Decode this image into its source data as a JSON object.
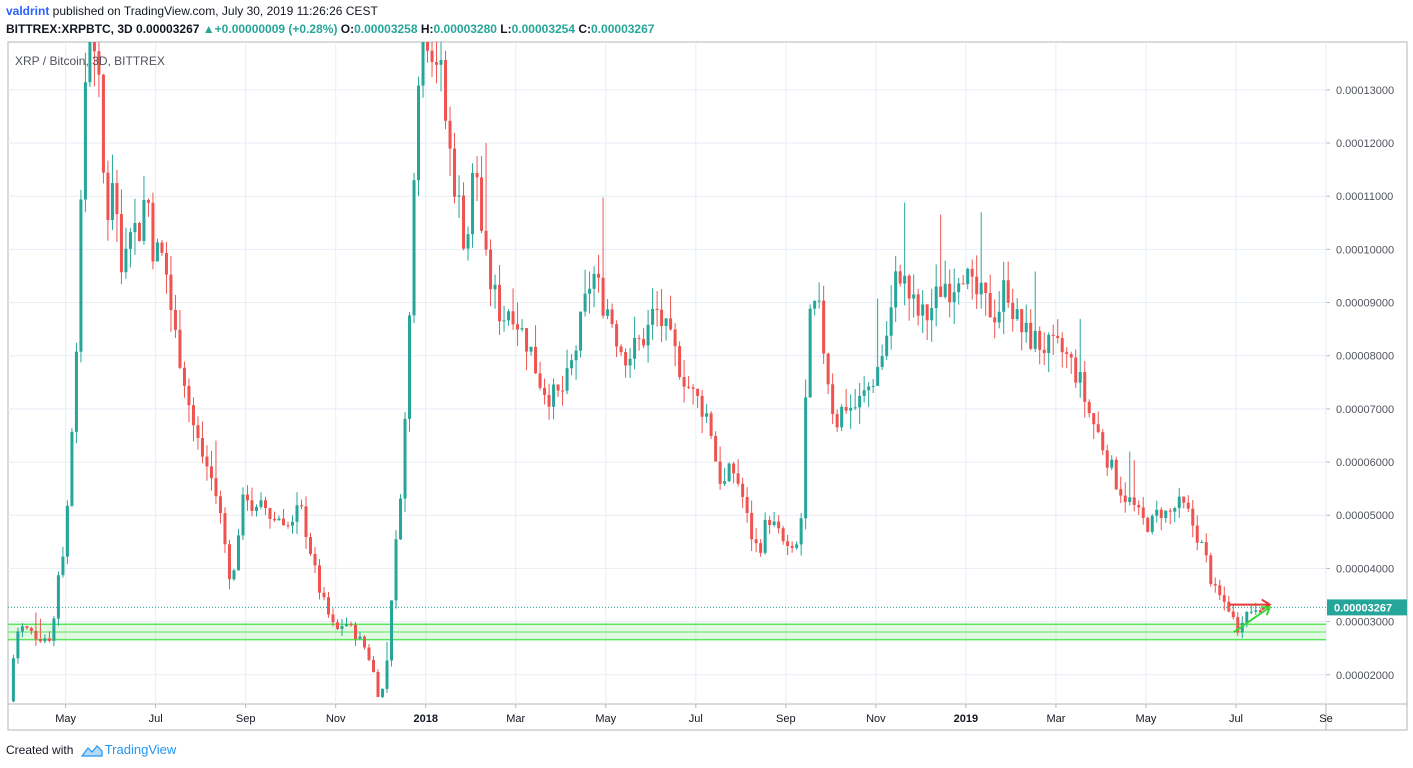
{
  "header": {
    "user": "valdrint",
    "published_text": " published on TradingView.com, July 30, 2019 11:26:26 CEST",
    "symbol": "BITTREX:XRPBTC, 3D",
    "last": "0.00003267",
    "arrow": "▲",
    "change": "+0.00000009 (+0.28%)",
    "o_label": "O:",
    "o_value": "0.00003258",
    "h_label": "H:",
    "h_value": "0.00003280",
    "l_label": "L:",
    "l_value": "0.00003254",
    "c_label": "C:",
    "c_value": "0.00003267"
  },
  "footer": {
    "created_with": "Created with",
    "brand": "TradingView"
  },
  "colors": {
    "bull": "#26a69a",
    "bear": "#ef5350",
    "grid": "#e6eef6",
    "support": "#5ee35e",
    "price_line": "#26a69a",
    "arrow": "#e53935",
    "arrow_green": "#36d636"
  },
  "chart_data": {
    "type": "candlestick",
    "title": "XRP / Bitcoin, 3D, BITTREX",
    "x_axis": {
      "labels": [
        {
          "t": 0.6,
          "label": "May"
        },
        {
          "t": 2.6,
          "label": "Jul"
        },
        {
          "t": 4.6,
          "label": "Sep"
        },
        {
          "t": 6.6,
          "label": "Nov"
        },
        {
          "t": 8.6,
          "label": "2018",
          "bold": true
        },
        {
          "t": 10.6,
          "label": "Mar"
        },
        {
          "t": 12.6,
          "label": "May"
        },
        {
          "t": 14.6,
          "label": "Jul"
        },
        {
          "t": 16.6,
          "label": "Sep"
        },
        {
          "t": 18.6,
          "label": "Nov"
        },
        {
          "t": 20.6,
          "label": "2019",
          "bold": true
        },
        {
          "t": 22.6,
          "label": "Mar"
        },
        {
          "t": 24.6,
          "label": "May"
        },
        {
          "t": 26.6,
          "label": "Jul"
        },
        {
          "t": 28.6,
          "label": "Se"
        }
      ],
      "range_months_since_apr2017": [
        -0.68,
        28.6
      ]
    },
    "y_axis": {
      "ticks": [
        "0.00002000",
        "0.00003000",
        "0.00004000",
        "0.00005000",
        "0.00006000",
        "0.00007000",
        "0.00008000",
        "0.00009000",
        "0.00010000",
        "0.00011000",
        "0.00012000",
        "0.00013000"
      ],
      "range": [
        1.45e-05,
        0.000139
      ]
    },
    "current_price": {
      "value": 3.267e-05,
      "label": "0.00003267"
    },
    "support_zone": [
      2.66e-05,
      2.95e-05
    ],
    "series": [
      {
        "t": -0.66,
        "c": 1.5e-05
      },
      {
        "t": -0.5,
        "c": 2.8e-05
      },
      {
        "t": -0.35,
        "c": 2.9e-05
      },
      {
        "t": 0.0,
        "c": 2.7e-05
      },
      {
        "t": 0.3,
        "c": 2.7e-05
      },
      {
        "t": 0.45,
        "c": 4e-05
      },
      {
        "t": 0.6,
        "c": 4.5e-05
      },
      {
        "t": 0.85,
        "c": 8.5e-05
      },
      {
        "t": 1.0,
        "c": 0.00012
      },
      {
        "t": 1.1,
        "c": 0.00015
      },
      {
        "t": 1.3,
        "c": 0.000135
      },
      {
        "t": 1.5,
        "c": 0.000105
      },
      {
        "t": 1.65,
        "c": 0.000115
      },
      {
        "t": 1.85,
        "c": 9.5e-05
      },
      {
        "t": 2.0,
        "c": 0.000108
      },
      {
        "t": 2.2,
        "c": 0.000102
      },
      {
        "t": 2.4,
        "c": 0.000112
      },
      {
        "t": 2.55,
        "c": 0.0001
      },
      {
        "t": 2.8,
        "c": 9.8e-05
      },
      {
        "t": 3.0,
        "c": 8.5e-05
      },
      {
        "t": 3.2,
        "c": 7.8e-05
      },
      {
        "t": 3.4,
        "c": 6.8e-05
      },
      {
        "t": 3.6,
        "c": 6.2e-05
      },
      {
        "t": 3.8,
        "c": 5.8e-05
      },
      {
        "t": 4.0,
        "c": 5.2e-05
      },
      {
        "t": 4.15,
        "c": 4.4e-05
      },
      {
        "t": 4.3,
        "c": 3.6e-05
      },
      {
        "t": 4.45,
        "c": 4.8e-05
      },
      {
        "t": 4.6,
        "c": 5.5e-05
      },
      {
        "t": 4.8,
        "c": 5e-05
      },
      {
        "t": 5.0,
        "c": 5.2e-05
      },
      {
        "t": 5.2,
        "c": 4.9e-05
      },
      {
        "t": 5.4,
        "c": 5e-05
      },
      {
        "t": 5.6,
        "c": 4.7e-05
      },
      {
        "t": 5.8,
        "c": 5.2e-05
      },
      {
        "t": 6.0,
        "c": 4.5e-05
      },
      {
        "t": 6.2,
        "c": 3.7e-05
      },
      {
        "t": 6.4,
        "c": 3.2e-05
      },
      {
        "t": 6.6,
        "c": 2.8e-05
      },
      {
        "t": 6.8,
        "c": 3e-05
      },
      {
        "t": 7.0,
        "c": 2.8e-05
      },
      {
        "t": 7.2,
        "c": 2.6e-05
      },
      {
        "t": 7.4,
        "c": 2.2e-05
      },
      {
        "t": 7.55,
        "c": 1.6e-05
      },
      {
        "t": 7.7,
        "c": 1.8e-05
      },
      {
        "t": 7.85,
        "c": 3.6e-05
      },
      {
        "t": 8.0,
        "c": 5e-05
      },
      {
        "t": 8.2,
        "c": 7.5e-05
      },
      {
        "t": 8.35,
        "c": 0.00012
      },
      {
        "t": 8.5,
        "c": 0.000145
      },
      {
        "t": 8.7,
        "c": 0.00014
      },
      {
        "t": 8.9,
        "c": 0.000135
      },
      {
        "t": 9.1,
        "c": 0.00012
      },
      {
        "t": 9.3,
        "c": 0.00011
      },
      {
        "t": 9.5,
        "c": 0.0001
      },
      {
        "t": 9.7,
        "c": 0.000118
      },
      {
        "t": 9.9,
        "c": 9.8e-05
      },
      {
        "t": 10.1,
        "c": 9.2e-05
      },
      {
        "t": 10.3,
        "c": 8.7e-05
      },
      {
        "t": 10.5,
        "c": 9e-05
      },
      {
        "t": 10.7,
        "c": 8.5e-05
      },
      {
        "t": 10.9,
        "c": 8.2e-05
      },
      {
        "t": 11.1,
        "c": 7.6e-05
      },
      {
        "t": 11.3,
        "c": 7.3e-05
      },
      {
        "t": 11.5,
        "c": 7.2e-05
      },
      {
        "t": 11.7,
        "c": 7.4e-05
      },
      {
        "t": 11.9,
        "c": 8e-05
      },
      {
        "t": 12.1,
        "c": 8.8e-05
      },
      {
        "t": 12.3,
        "c": 9.6e-05
      },
      {
        "t": 12.5,
        "c": 9.1e-05
      },
      {
        "t": 12.7,
        "c": 8.8e-05
      },
      {
        "t": 12.9,
        "c": 8.2e-05
      },
      {
        "t": 13.1,
        "c": 8e-05
      },
      {
        "t": 13.3,
        "c": 8.2e-05
      },
      {
        "t": 13.5,
        "c": 8.4e-05
      },
      {
        "t": 13.7,
        "c": 8.9e-05
      },
      {
        "t": 13.9,
        "c": 8.5e-05
      },
      {
        "t": 14.1,
        "c": 8.1e-05
      },
      {
        "t": 14.3,
        "c": 7.7e-05
      },
      {
        "t": 14.5,
        "c": 7.3e-05
      },
      {
        "t": 14.7,
        "c": 7.1e-05
      },
      {
        "t": 14.9,
        "c": 6.8e-05
      },
      {
        "t": 15.05,
        "c": 6e-05
      },
      {
        "t": 15.2,
        "c": 5.5e-05
      },
      {
        "t": 15.4,
        "c": 5.9e-05
      },
      {
        "t": 15.6,
        "c": 5.5e-05
      },
      {
        "t": 15.8,
        "c": 4.7e-05
      },
      {
        "t": 16.0,
        "c": 4.3e-05
      },
      {
        "t": 16.2,
        "c": 5e-05
      },
      {
        "t": 16.4,
        "c": 4.7e-05
      },
      {
        "t": 16.6,
        "c": 4.4e-05
      },
      {
        "t": 16.8,
        "c": 4.2e-05
      },
      {
        "t": 16.95,
        "c": 5e-05
      },
      {
        "t": 17.1,
        "c": 8.5e-05
      },
      {
        "t": 17.3,
        "c": 9e-05
      },
      {
        "t": 17.5,
        "c": 7.8e-05
      },
      {
        "t": 17.7,
        "c": 6.7e-05
      },
      {
        "t": 17.9,
        "c": 7.1e-05
      },
      {
        "t": 18.1,
        "c": 7e-05
      },
      {
        "t": 18.3,
        "c": 7.2e-05
      },
      {
        "t": 18.5,
        "c": 7.5e-05
      },
      {
        "t": 18.7,
        "c": 7.9e-05
      },
      {
        "t": 18.9,
        "c": 8.6e-05
      },
      {
        "t": 19.1,
        "c": 9.7e-05
      },
      {
        "t": 19.3,
        "c": 9.2e-05
      },
      {
        "t": 19.5,
        "c": 8.8e-05
      },
      {
        "t": 19.7,
        "c": 8.7e-05
      },
      {
        "t": 19.9,
        "c": 9e-05
      },
      {
        "t": 20.1,
        "c": 9.4e-05
      },
      {
        "t": 20.3,
        "c": 9.3e-05
      },
      {
        "t": 20.5,
        "c": 9.8e-05
      },
      {
        "t": 20.7,
        "c": 9.2e-05
      },
      {
        "t": 20.9,
        "c": 9.1e-05
      },
      {
        "t": 21.1,
        "c": 8.9e-05
      },
      {
        "t": 21.3,
        "c": 8.8e-05
      },
      {
        "t": 21.5,
        "c": 9.4e-05
      },
      {
        "t": 21.7,
        "c": 8.7e-05
      },
      {
        "t": 21.9,
        "c": 8.4e-05
      },
      {
        "t": 22.1,
        "c": 8.3e-05
      },
      {
        "t": 22.3,
        "c": 8.2e-05
      },
      {
        "t": 22.5,
        "c": 8.1e-05
      },
      {
        "t": 22.7,
        "c": 8.1e-05
      },
      {
        "t": 22.9,
        "c": 7.9e-05
      },
      {
        "t": 23.1,
        "c": 7.6e-05
      },
      {
        "t": 23.3,
        "c": 7e-05
      },
      {
        "t": 23.5,
        "c": 6.6e-05
      },
      {
        "t": 23.7,
        "c": 6.2e-05
      },
      {
        "t": 23.9,
        "c": 5.7e-05
      },
      {
        "t": 24.1,
        "c": 5.4e-05
      },
      {
        "t": 24.3,
        "c": 5.2e-05
      },
      {
        "t": 24.5,
        "c": 4.9e-05
      },
      {
        "t": 24.7,
        "c": 4.8e-05
      },
      {
        "t": 24.9,
        "c": 5.1e-05
      },
      {
        "t": 25.1,
        "c": 5e-05
      },
      {
        "t": 25.3,
        "c": 5.2e-05
      },
      {
        "t": 25.5,
        "c": 5.1e-05
      },
      {
        "t": 25.7,
        "c": 4.7e-05
      },
      {
        "t": 25.9,
        "c": 4.3e-05
      },
      {
        "t": 26.1,
        "c": 3.6e-05
      },
      {
        "t": 26.3,
        "c": 3.4e-05
      },
      {
        "t": 26.5,
        "c": 3.2e-05
      },
      {
        "t": 26.6,
        "c": 2.8e-05
      },
      {
        "t": 26.75,
        "c": 3.1e-05
      },
      {
        "t": 26.9,
        "c": 3.2e-05
      },
      {
        "t": 27.05,
        "c": 3.3e-05
      },
      {
        "t": 27.2,
        "c": 3.27e-05
      }
    ],
    "annotations": {
      "red_arrow": {
        "t1": 26.45,
        "t2": 27.35,
        "value": 3.32e-05
      },
      "green_arrow": {
        "t1": 26.55,
        "t2": 27.35,
        "v1": 2.8e-05,
        "v2": 3.27e-05
      }
    }
  }
}
